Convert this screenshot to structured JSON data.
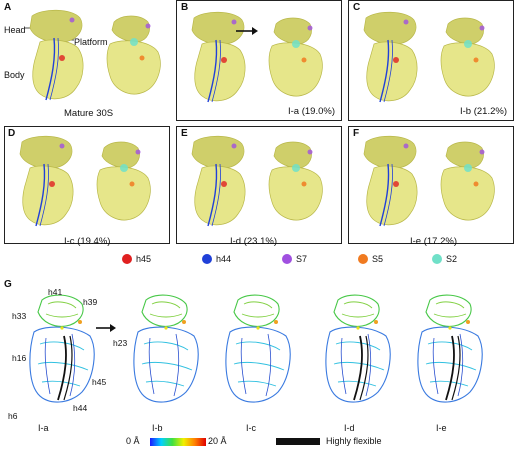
{
  "panels_top": [
    {
      "letter": "A",
      "caption": "Mature 30S"
    },
    {
      "letter": "B",
      "caption": "I-a  (19.0%)"
    },
    {
      "letter": "C",
      "caption": "I-b  (21.2%)"
    },
    {
      "letter": "D",
      "caption": "I-c (19.4%)"
    },
    {
      "letter": "E",
      "caption": "I-d (23.1%)"
    },
    {
      "letter": "F",
      "caption": "I-e (17.2%)"
    }
  ],
  "panel_a_labels": {
    "head": "Head",
    "platform": "Platform",
    "body": "Body"
  },
  "legend": [
    {
      "name": "h45",
      "color": "#e02020"
    },
    {
      "name": "h44",
      "color": "#2040d8"
    },
    {
      "name": "S7",
      "color": "#a050e0"
    },
    {
      "name": "S5",
      "color": "#f07a20"
    },
    {
      "name": "S2",
      "color": "#70e0c8"
    }
  ],
  "panel_g": {
    "letter": "G",
    "helix_labels": [
      "h41",
      "h39",
      "h33",
      "h23",
      "h16",
      "h45",
      "h44",
      "h6"
    ],
    "structures": [
      "I-a",
      "I-b",
      "I-c",
      "I-d",
      "I-e"
    ],
    "scale_min": "0 Å",
    "scale_max": "20 Å",
    "flexible_label": "Highly flexible"
  },
  "colors": {
    "map_fill": "#e6e68a",
    "map_stroke": "#b9b84a",
    "head_fill": "#cfcf6a",
    "flexible": "#111111"
  }
}
